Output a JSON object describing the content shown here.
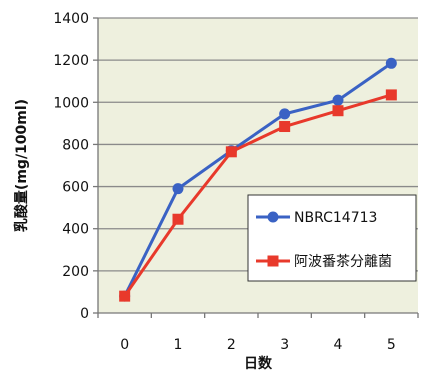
{
  "chart_data": {
    "type": "line",
    "title": "",
    "xlabel": "日数",
    "ylabel": "乳酸量(mg/100ml)",
    "x": [
      0,
      1,
      2,
      3,
      4,
      5
    ],
    "xlim": [
      -0.5,
      5.5
    ],
    "ylim": [
      0,
      1400
    ],
    "yticks": [
      0,
      200,
      400,
      600,
      800,
      1000,
      1200,
      1400
    ],
    "grid": true,
    "legend_position": "bottom-right",
    "series": [
      {
        "name": "NBRC14713",
        "color": "#3a62c4",
        "marker": "circle",
        "values": [
          80,
          590,
          770,
          945,
          1010,
          1185
        ]
      },
      {
        "name": "阿波番茶分離菌",
        "color": "#e8392b",
        "marker": "square",
        "values": [
          80,
          445,
          765,
          885,
          960,
          1035
        ]
      }
    ],
    "plot_background": "#eef0de"
  }
}
